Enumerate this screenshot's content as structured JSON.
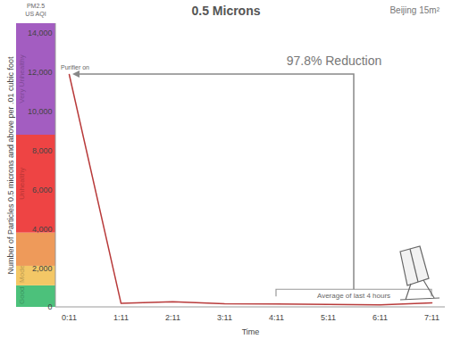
{
  "chart_data": {
    "type": "line",
    "title": "0.5 Microns",
    "subtitle": "Beijing 15m²",
    "x_label": "Time",
    "y_label": "Number of Particles 0.5 microns and above per .01 cubic foot",
    "categories": [
      "0:11",
      "1:11",
      "2:11",
      "3:11",
      "4:11",
      "5:11",
      "6:11",
      "7:11"
    ],
    "values": [
      11900,
      200,
      280,
      180,
      170,
      150,
      120,
      230
    ],
    "color": "#b83a3a",
    "ylim": [
      0,
      14500
    ],
    "yticks": [
      0,
      2000,
      4000,
      6000,
      8000,
      10000,
      12000,
      14000
    ],
    "aqi_scale": {
      "title": "PM2.5 US AQI",
      "bands": [
        {
          "label": "Good",
          "from": 0,
          "to": 1100,
          "color": "#4cc17b"
        },
        {
          "label": "Moderate",
          "from": 1100,
          "to": 2100,
          "color": "#f3c766"
        },
        {
          "label": null,
          "from": 2100,
          "to": 3800,
          "color": "#ee9a5a"
        },
        {
          "label": "Unhealthy",
          "from": 3800,
          "to": 8800,
          "color": "#ee4444"
        },
        {
          "label": "Very Unhealthy",
          "from": 8800,
          "to": 14500,
          "color": "#a35dc1"
        }
      ]
    },
    "annotations": {
      "start_note": {
        "text": "Purifier on",
        "x": "0:11",
        "y": 11900
      },
      "reduction": {
        "text": "97.8% Reduction",
        "y": 11900
      },
      "average": {
        "text": "Average of last 4 hours",
        "from": "4:11",
        "to": "7:11",
        "y": 900
      }
    }
  }
}
